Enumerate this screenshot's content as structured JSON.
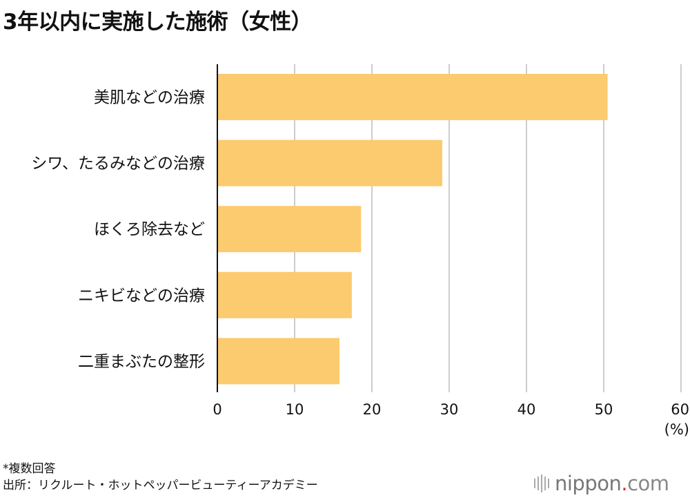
{
  "chart_data": {
    "type": "bar",
    "orientation": "horizontal",
    "title": "3年以内に実施した施術（女性）",
    "categories": [
      "美肌などの治療",
      "シワ、たるみなどの治療",
      "ほくろ除去など",
      "ニキビなどの治療",
      "二重まぶたの整形"
    ],
    "values": [
      50.5,
      29.1,
      18.6,
      17.4,
      15.8
    ],
    "xlim": [
      0,
      60
    ],
    "xticks": [
      0,
      10,
      20,
      30,
      40,
      50,
      60
    ],
    "xunit": "(%)",
    "grid": true,
    "bar_color": "#fcca6f"
  },
  "footer": {
    "note": "*複数回答",
    "source": "出所：リクルート・ホットペッパービューティーアカデミー"
  },
  "logo": {
    "name": "nippon",
    "dot": ".",
    "tld": "com"
  }
}
